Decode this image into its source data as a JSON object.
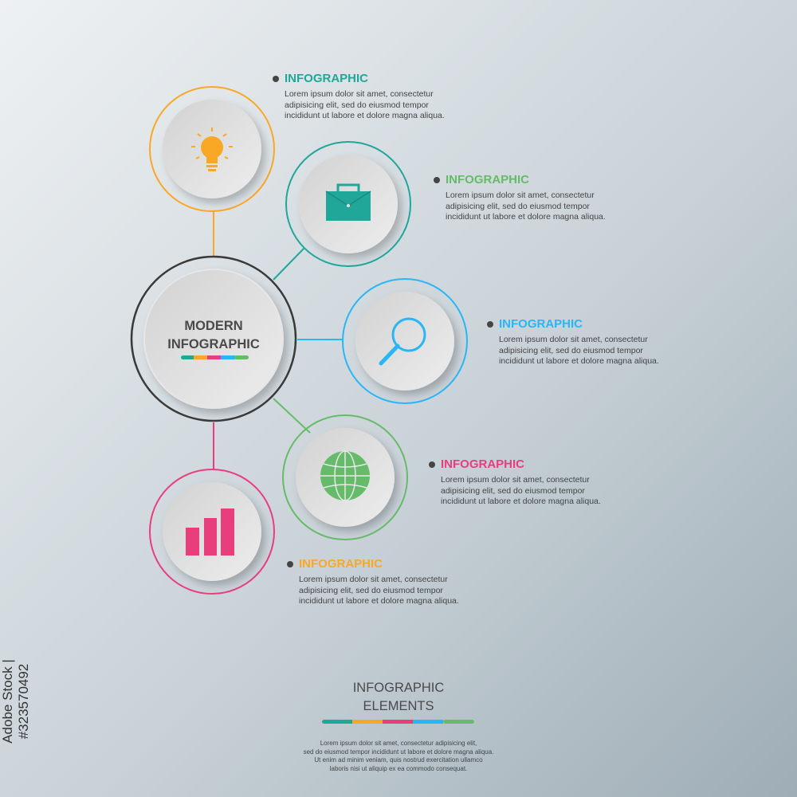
{
  "colors": {
    "teal": "#21a69a",
    "orange": "#f9a825",
    "pink": "#e83e7c",
    "blue": "#29b6f6",
    "green": "#66bb6a",
    "center_ring": "#3a3a3a"
  },
  "center": {
    "line1": "MODERN",
    "line2": "INFOGRAPHIC"
  },
  "items": [
    {
      "icon": "lightbulb-icon",
      "title": "INFOGRAPHIC",
      "title_color": "#21a69a",
      "ring_color": "#f9a825",
      "lines": [
        "Lorem ipsum dolor sit amet, consectetur",
        "adipisicing elit, sed do eiusmod tempor",
        "incididunt ut labore et dolore magna aliqua."
      ]
    },
    {
      "icon": "briefcase-icon",
      "title": "INFOGRAPHIC",
      "title_color": "#66bb6a",
      "ring_color": "#21a69a",
      "lines": [
        "Lorem ipsum dolor sit amet, consectetur",
        "adipisicing elit, sed do eiusmod tempor",
        "incididunt ut labore et dolore magna aliqua."
      ]
    },
    {
      "icon": "search-icon",
      "title": "INFOGRAPHIC",
      "title_color": "#29b6f6",
      "ring_color": "#29b6f6",
      "lines": [
        "Lorem ipsum dolor sit amet, consectetur",
        "adipisicing elit, sed do eiusmod tempor",
        "incididunt ut labore et dolore magna aliqua."
      ]
    },
    {
      "icon": "globe-icon",
      "title": "INFOGRAPHIC",
      "title_color": "#e83e7c",
      "ring_color": "#66bb6a",
      "lines": [
        "Lorem ipsum dolor sit amet, consectetur",
        "adipisicing elit, sed do eiusmod tempor",
        "incididunt ut labore et dolore magna aliqua."
      ]
    },
    {
      "icon": "bar-chart-icon",
      "title": "INFOGRAPHIC",
      "title_color": "#f9a825",
      "ring_color": "#e83e7c",
      "lines": [
        "Lorem ipsum dolor sit amet, consectetur",
        "adipisicing elit, sed do eiusmod tempor",
        "incididunt ut labore et dolore magna aliqua."
      ]
    }
  ],
  "footer": {
    "title1": "INFOGRAPHIC",
    "title2": "ELEMENTS",
    "lines": [
      "Lorem ipsum dolor sit amet, consectetur adipisicing elit,",
      "sed do eiusmod tempor incididunt ut labore et dolore magna aliqua.",
      "Ut enim ad minim veniam, quis nostrud exercitation ullamco",
      "laboris nisi ut aliquip ex ea commodo consequat."
    ]
  },
  "watermark": {
    "stock_id": "Adobe Stock | #323570492"
  }
}
